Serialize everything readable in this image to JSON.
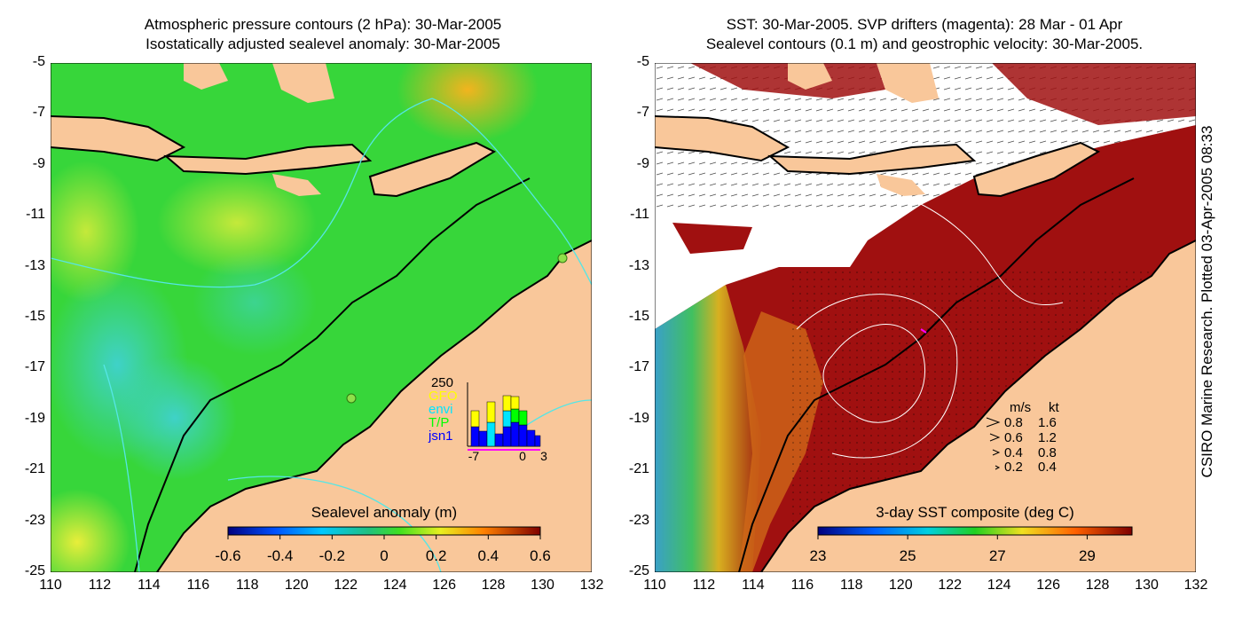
{
  "left_panel": {
    "title_line1": "Atmospheric pressure contours (2 hPa): 30-Mar-2005",
    "title_line2": "Isostatically adjusted sealevel anomaly: 30-Mar-2005",
    "y_ticks": [
      "-5",
      "-7",
      "-9",
      "-11",
      "-13",
      "-15",
      "-17",
      "-19",
      "-21",
      "-23",
      "-25"
    ],
    "x_ticks": [
      "110",
      "112",
      "114",
      "116",
      "118",
      "120",
      "122",
      "124",
      "126",
      "128",
      "130",
      "132"
    ],
    "colorbar": {
      "label": "Sealevel anomaly (m)",
      "ticks": [
        "-0.6",
        "-0.4",
        "-0.2",
        "0",
        "0.2",
        "0.4",
        "0.6"
      ],
      "range": [
        -0.6,
        0.6
      ]
    },
    "inset": {
      "max_label": "250",
      "legend": [
        {
          "name": "GFO",
          "color": "#ffff00"
        },
        {
          "name": "envi",
          "color": "#00e5ff"
        },
        {
          "name": "T/P",
          "color": "#00ff00"
        },
        {
          "name": "jsn1",
          "color": "#0000ff"
        }
      ],
      "x_labels": [
        "-7",
        "0",
        "3"
      ]
    }
  },
  "right_panel": {
    "title_line1": "SST: 30-Mar-2005. SVP drifters (magenta): 28 Mar - 01 Apr",
    "title_line2": "Sealevel contours (0.1 m) and geostrophic velocity: 30-Mar-2005.",
    "y_ticks": [
      "-5",
      "-7",
      "-9",
      "-11",
      "-13",
      "-15",
      "-17",
      "-19",
      "-21",
      "-23",
      "-25"
    ],
    "x_ticks": [
      "110",
      "112",
      "114",
      "116",
      "118",
      "120",
      "122",
      "124",
      "126",
      "128",
      "130",
      "132"
    ],
    "velocity_legend": {
      "header_ms": "m/s",
      "header_kt": "kt",
      "rows": [
        {
          "ms": "0.8",
          "kt": "1.6"
        },
        {
          "ms": "0.6",
          "kt": "1.2"
        },
        {
          "ms": "0.4",
          "kt": "0.8"
        },
        {
          "ms": "0.2",
          "kt": "0.4"
        }
      ]
    },
    "colorbar": {
      "label": "3-day SST composite (deg C)",
      "ticks": [
        "23",
        "25",
        "27",
        "29"
      ],
      "range": [
        23,
        30
      ]
    }
  },
  "credit": "CSIRO Marine Research. Plotted 03-Apr-2005 08:33",
  "colors": {
    "land": "#f9c79a",
    "sla_green": "#22d622",
    "sst_warm": "#a01010"
  }
}
